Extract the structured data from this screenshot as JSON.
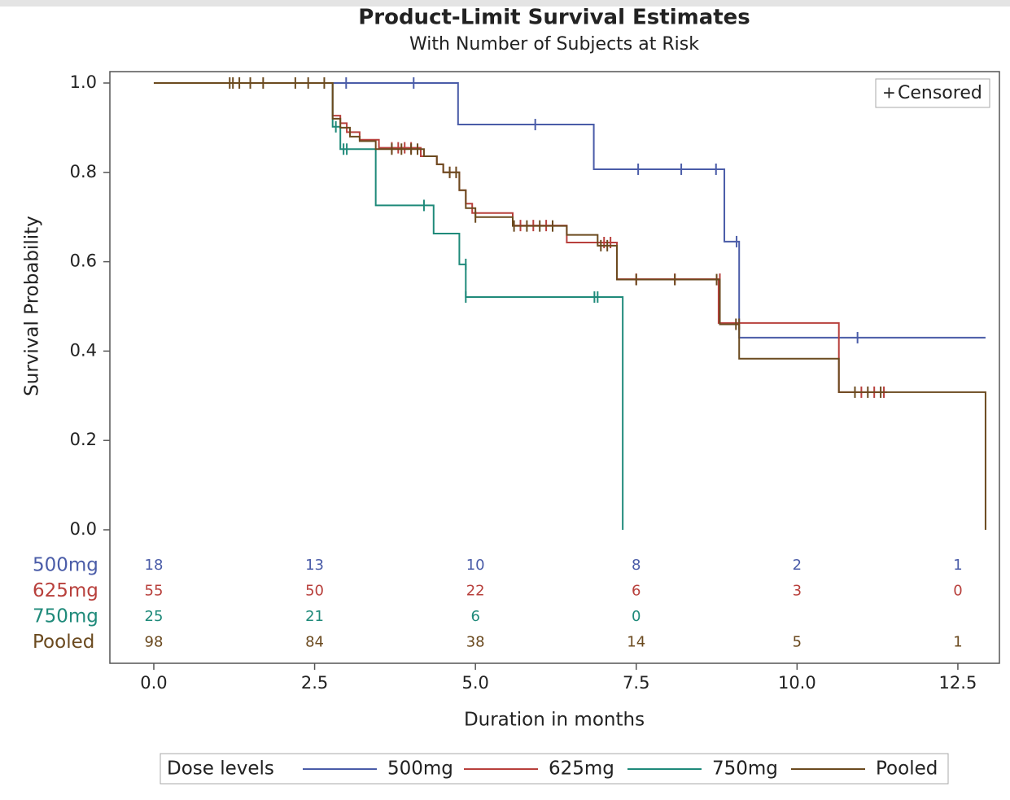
{
  "chart_data": {
    "type": "step",
    "title": "Product-Limit Survival Estimates",
    "subtitle": "With Number of Subjects at Risk",
    "x_label": "Duration in months",
    "y_label": "Survival Probability",
    "xlim": [
      -0.683,
      13.146
    ],
    "ylim": [
      0,
      1
    ],
    "xticks": [
      {
        "value": 0,
        "label": "0.0"
      },
      2.5,
      {
        "value": 5,
        "label": "5.0"
      },
      7.5,
      {
        "value": 10,
        "label": "10.0"
      },
      12.5
    ],
    "yticks": [
      {
        "value": 0,
        "label": "0.0"
      },
      0.2,
      0.4,
      0.6,
      0.8,
      {
        "value": 1,
        "label": "1.0"
      }
    ],
    "censor_legend": "Censored",
    "censor_symbol": "+",
    "legend_title": "Dose levels",
    "at_risk_x": [
      0,
      2.5,
      5,
      7.5,
      10,
      12.5
    ],
    "series": [
      {
        "name": "500mg",
        "color": "#4a5ca8",
        "x": [
          0,
          4.73,
          6.84,
          8.87,
          9.1,
          12.93
        ],
        "values": [
          1,
          0.907,
          0.807,
          0.645,
          0.43,
          0.43
        ],
        "censored_x": [
          2.99,
          4.04,
          5.93,
          7.53,
          8.2,
          8.74,
          9.06,
          10.94
        ],
        "censored_values": [
          1,
          1,
          0.907,
          0.807,
          0.807,
          0.807,
          0.645,
          0.43
        ],
        "at_risk": [
          18,
          13,
          10,
          8,
          2,
          1
        ]
      },
      {
        "name": "625mg",
        "color": "#b8403c",
        "x": [
          0,
          2.78,
          2.9,
          3.0,
          3.2,
          3.5,
          4.15,
          4.4,
          4.5,
          4.75,
          4.85,
          4.95,
          5.58,
          6.42,
          7.2,
          8.78,
          10.65,
          11.4
        ],
        "values": [
          1,
          0.927,
          0.91,
          0.89,
          0.873,
          0.855,
          0.836,
          0.818,
          0.8,
          0.76,
          0.73,
          0.709,
          0.681,
          0.643,
          0.561,
          0.463,
          0.308,
          0.308
        ],
        "censored_x": [
          3.7,
          3.8,
          3.9,
          4.0,
          4.6,
          4.7,
          5.7,
          5.9,
          6.1,
          7.0,
          7.1,
          7.5,
          8.1,
          8.8,
          11.0,
          11.2,
          11.35
        ],
        "censored_values": [
          0.855,
          0.855,
          0.855,
          0.855,
          0.8,
          0.8,
          0.681,
          0.681,
          0.681,
          0.643,
          0.643,
          0.561,
          0.561,
          0.561,
          0.308,
          0.308,
          0.308
        ],
        "at_risk": [
          55,
          50,
          22,
          6,
          3,
          0
        ]
      },
      {
        "name": "750mg",
        "color": "#1f8a7a",
        "x": [
          0,
          2.78,
          2.9,
          3.45,
          4.35,
          4.75,
          4.85,
          7.29
        ],
        "values": [
          1,
          0.902,
          0.852,
          0.726,
          0.663,
          0.594,
          0.521,
          0
        ],
        "censored_x": [
          2.83,
          2.95,
          3.0,
          4.2,
          4.85,
          4.85,
          6.85,
          6.9
        ],
        "censored_values": [
          0.902,
          0.852,
          0.852,
          0.726,
          0.594,
          0.521,
          0.521,
          0.521
        ],
        "at_risk": [
          25,
          21,
          6,
          0,
          null,
          null
        ]
      },
      {
        "name": "Pooled",
        "color": "#6b4a1f",
        "x": [
          0,
          2.78,
          2.9,
          3.05,
          3.2,
          3.45,
          4.2,
          4.4,
          4.5,
          4.75,
          4.85,
          5.0,
          5.58,
          6.42,
          6.9,
          7.2,
          8.8,
          9.1,
          10.65,
          12.93
        ],
        "values": [
          1,
          0.92,
          0.9,
          0.88,
          0.87,
          0.852,
          0.836,
          0.818,
          0.8,
          0.76,
          0.72,
          0.7,
          0.68,
          0.66,
          0.636,
          0.56,
          0.46,
          0.383,
          0.308,
          0
        ],
        "censored_x": [
          1.18,
          1.23,
          1.33,
          1.5,
          1.7,
          2.2,
          2.4,
          2.65,
          3.7,
          3.85,
          4.0,
          4.1,
          4.6,
          4.7,
          5.0,
          5.6,
          5.8,
          6.0,
          6.2,
          6.95,
          7.05,
          7.5,
          8.1,
          8.75,
          9.05,
          9.1,
          10.9,
          11.1,
          11.3
        ],
        "censored_values": [
          1,
          1,
          1,
          1,
          1,
          1,
          1,
          1,
          0.852,
          0.852,
          0.852,
          0.852,
          0.8,
          0.8,
          0.7,
          0.68,
          0.68,
          0.68,
          0.68,
          0.636,
          0.636,
          0.56,
          0.56,
          0.56,
          0.46,
          0.46,
          0.308,
          0.308,
          0.308
        ],
        "at_risk": [
          98,
          84,
          38,
          14,
          5,
          1
        ]
      }
    ]
  }
}
